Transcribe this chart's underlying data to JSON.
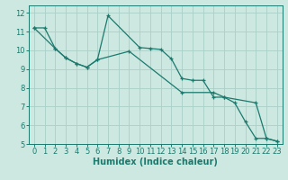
{
  "xlabel": "Humidex (Indice chaleur)",
  "bg_color": "#cce8e0",
  "line_color": "#1a7a6e",
  "grid_color": "#aacec8",
  "xlim": [
    -0.5,
    23.5
  ],
  "ylim": [
    5,
    12.4
  ],
  "yticks": [
    5,
    6,
    7,
    8,
    9,
    10,
    11,
    12
  ],
  "xticks": [
    0,
    1,
    2,
    3,
    4,
    5,
    6,
    7,
    8,
    9,
    10,
    11,
    12,
    13,
    14,
    15,
    16,
    17,
    18,
    19,
    20,
    21,
    22,
    23
  ],
  "line1_x": [
    0,
    1,
    2,
    3,
    4,
    5,
    6,
    7,
    10,
    11,
    12,
    13,
    14,
    15,
    16,
    17,
    18,
    19,
    20,
    21,
    22,
    23
  ],
  "line1_y": [
    11.2,
    11.2,
    10.1,
    9.6,
    9.3,
    9.1,
    9.5,
    11.85,
    10.15,
    10.1,
    10.05,
    9.55,
    8.5,
    8.4,
    8.4,
    7.5,
    7.5,
    7.2,
    6.2,
    5.3,
    5.3,
    5.15
  ],
  "line2_x": [
    0,
    2,
    3,
    4,
    5,
    6,
    9,
    14,
    17,
    18,
    21,
    22,
    23
  ],
  "line2_y": [
    11.2,
    10.1,
    9.6,
    9.3,
    9.1,
    9.5,
    9.95,
    7.75,
    7.75,
    7.5,
    7.2,
    5.3,
    5.15
  ],
  "xlabel_fontsize": 7,
  "tick_fontsize": 6
}
